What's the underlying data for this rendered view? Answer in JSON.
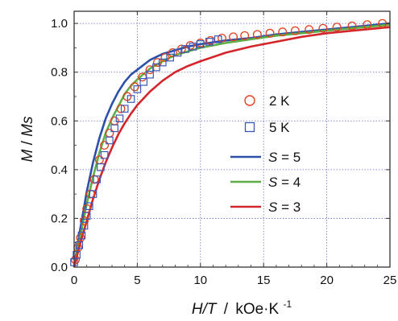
{
  "chart_data": {
    "type": "scatter",
    "xlabel": {
      "main": "H/T",
      "unit": "kOe·K",
      "exp": "-1"
    },
    "ylabel": {
      "main": "M",
      "sep": " / ",
      "denom": "Ms"
    },
    "xlim": [
      0,
      25
    ],
    "ylim": [
      0,
      1.05
    ],
    "x_ticks": [
      0,
      5,
      10,
      15,
      20,
      25
    ],
    "y_ticks": [
      0.0,
      0.2,
      0.4,
      0.6,
      0.8,
      1.0
    ],
    "x_tick_labels": [
      "0",
      "5",
      "10",
      "15",
      "20",
      "25"
    ],
    "y_tick_labels": [
      "0.0",
      "0.2",
      "0.4",
      "0.6",
      "0.8",
      "1.0"
    ],
    "grid": true,
    "legend_position": "right",
    "series": [
      {
        "name": "2 K",
        "kind": "points",
        "marker": "circle",
        "color": "#e2401f",
        "x": [
          0.1,
          0.3,
          0.5,
          0.8,
          1.0,
          1.3,
          1.6,
          2.0,
          2.4,
          2.8,
          3.2,
          3.7,
          4.2,
          4.8,
          5.4,
          6.0,
          6.6,
          7.2,
          7.8,
          8.5,
          9.2,
          10.0,
          10.8,
          11.7,
          12.6,
          13.5,
          14.5,
          15.5,
          16.5,
          17.5,
          18.6,
          19.7,
          20.8,
          22.0,
          23.2,
          24.4
        ],
        "y": [
          0.03,
          0.08,
          0.12,
          0.19,
          0.24,
          0.3,
          0.36,
          0.44,
          0.5,
          0.55,
          0.6,
          0.65,
          0.7,
          0.74,
          0.78,
          0.81,
          0.84,
          0.86,
          0.88,
          0.895,
          0.91,
          0.92,
          0.93,
          0.94,
          0.945,
          0.95,
          0.955,
          0.96,
          0.965,
          0.97,
          0.975,
          0.98,
          0.985,
          0.99,
          0.995,
          1.0
        ]
      },
      {
        "name": "5 K",
        "kind": "points",
        "marker": "square",
        "color": "#3b58b8",
        "x": [
          0.0,
          0.2,
          0.4,
          0.6,
          0.8,
          1.0,
          1.2,
          1.5,
          1.8,
          2.1,
          2.4,
          2.8,
          3.2,
          3.6,
          4.0,
          4.5,
          5.0,
          5.5,
          6.0,
          6.5,
          7.0,
          7.6,
          8.2,
          8.8,
          9.4,
          10.0,
          10.7,
          11.4
        ],
        "y": [
          0.02,
          0.05,
          0.09,
          0.13,
          0.17,
          0.21,
          0.25,
          0.3,
          0.36,
          0.41,
          0.46,
          0.52,
          0.57,
          0.61,
          0.65,
          0.69,
          0.73,
          0.76,
          0.79,
          0.82,
          0.84,
          0.86,
          0.88,
          0.895,
          0.905,
          0.915,
          0.925,
          0.935
        ]
      },
      {
        "name": "S = 5",
        "kind": "line",
        "color": "#2c4fa8",
        "x": [
          0,
          0.5,
          1,
          1.5,
          2,
          2.5,
          3,
          3.5,
          4,
          4.5,
          5,
          6,
          7,
          8,
          9,
          10,
          12,
          14,
          16,
          18,
          20,
          22,
          25
        ],
        "y": [
          0.0,
          0.16,
          0.31,
          0.43,
          0.53,
          0.61,
          0.67,
          0.72,
          0.76,
          0.79,
          0.81,
          0.85,
          0.875,
          0.89,
          0.905,
          0.915,
          0.93,
          0.94,
          0.955,
          0.965,
          0.975,
          0.985,
          1.0
        ]
      },
      {
        "name": "S = 4",
        "kind": "line",
        "color": "#5fae45",
        "x": [
          0,
          0.5,
          1,
          1.5,
          2,
          2.5,
          3,
          3.5,
          4,
          4.5,
          5,
          6,
          7,
          8,
          9,
          10,
          12,
          14,
          16,
          18,
          20,
          22,
          25
        ],
        "y": [
          0.0,
          0.13,
          0.26,
          0.37,
          0.47,
          0.55,
          0.61,
          0.66,
          0.71,
          0.745,
          0.77,
          0.815,
          0.845,
          0.87,
          0.885,
          0.9,
          0.92,
          0.935,
          0.95,
          0.96,
          0.97,
          0.98,
          0.995
        ]
      },
      {
        "name": "S = 3",
        "kind": "line",
        "color": "#d4262a",
        "x": [
          0,
          0.5,
          1,
          1.5,
          2,
          2.5,
          3,
          3.5,
          4,
          4.5,
          5,
          6,
          7,
          8,
          9,
          10,
          12,
          14,
          16,
          18,
          20,
          22,
          25
        ],
        "y": [
          0.0,
          0.1,
          0.19,
          0.28,
          0.36,
          0.43,
          0.49,
          0.545,
          0.59,
          0.63,
          0.665,
          0.72,
          0.765,
          0.8,
          0.825,
          0.845,
          0.88,
          0.905,
          0.925,
          0.945,
          0.96,
          0.97,
          0.985
        ]
      }
    ]
  },
  "legend": {
    "points": [
      {
        "label": "2 K",
        "marker": "circle",
        "color": "#e2401f"
      },
      {
        "label": "5 K",
        "marker": "square",
        "color": "#3b58b8"
      }
    ],
    "lines": [
      {
        "var": "S",
        "eq": " = 5",
        "color": "#2c4fa8"
      },
      {
        "var": "S",
        "eq": " = 4",
        "color": "#5fae45"
      },
      {
        "var": "S",
        "eq": " = 3",
        "color": "#d4262a"
      }
    ]
  }
}
